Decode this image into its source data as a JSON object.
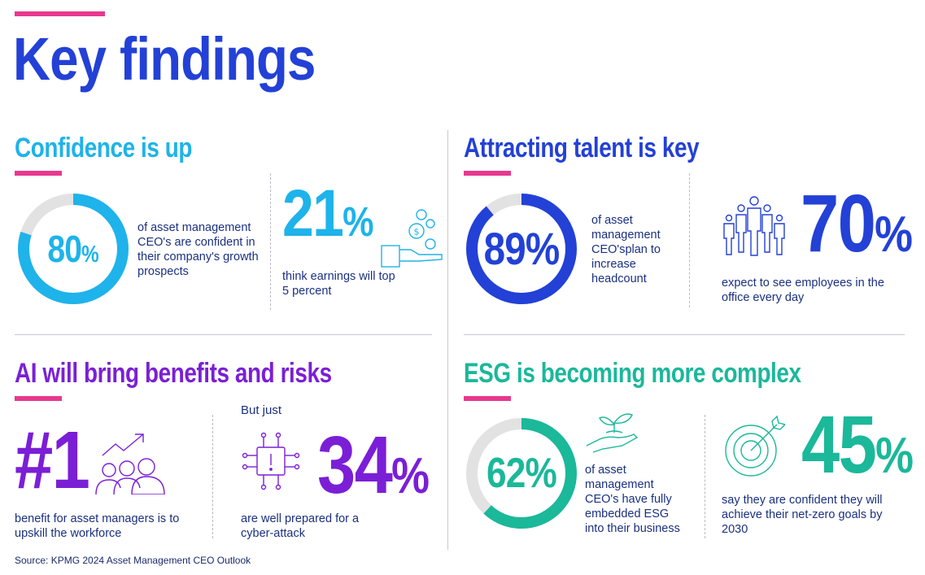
{
  "page": {
    "title": "Key findings",
    "source": "Source: KPMG 2024 Asset Management CEO Outlook"
  },
  "colors": {
    "accent_pink": "#e8388f",
    "blue_dark": "#2341d6",
    "cyan": "#1eb3ea",
    "purple": "#7b1fd6",
    "teal": "#1bb89a",
    "grey_track": "#e2e2e2"
  },
  "confidence": {
    "title": "Confidence is up",
    "donut_value": "80",
    "donut_unit": "%",
    "donut_fraction": 0.8,
    "donut_text": "of asset management CEO's are confident in their company's growth prospects",
    "stat_value": "21",
    "stat_unit": "%",
    "stat_text": "think earnings will top 5 percent"
  },
  "talent": {
    "title": "Attracting talent is key",
    "donut_value": "89",
    "donut_unit": "%",
    "donut_fraction": 0.89,
    "donut_text": "of asset management CEO'splan to increase headcount",
    "stat_value": "70",
    "stat_unit": "%",
    "stat_text": "expect to see employees in the office every day"
  },
  "ai": {
    "title": "AI will bring benefits and risks",
    "rank_value": "#1",
    "rank_text": "benefit for asset managers is to upskill the workforce",
    "but_just": "But just",
    "stat_value": "34",
    "stat_unit": "%",
    "stat_text": "are well prepared for a cyber-attack"
  },
  "esg": {
    "title": "ESG is becoming more complex",
    "donut_value": "62",
    "donut_unit": "%",
    "donut_fraction": 0.62,
    "donut_text": "of asset management CEO's have fully embedded ESG into their business",
    "stat_value": "45",
    "stat_unit": "%",
    "stat_text": "say they are confident they will achieve their net-zero goals by 2030"
  }
}
